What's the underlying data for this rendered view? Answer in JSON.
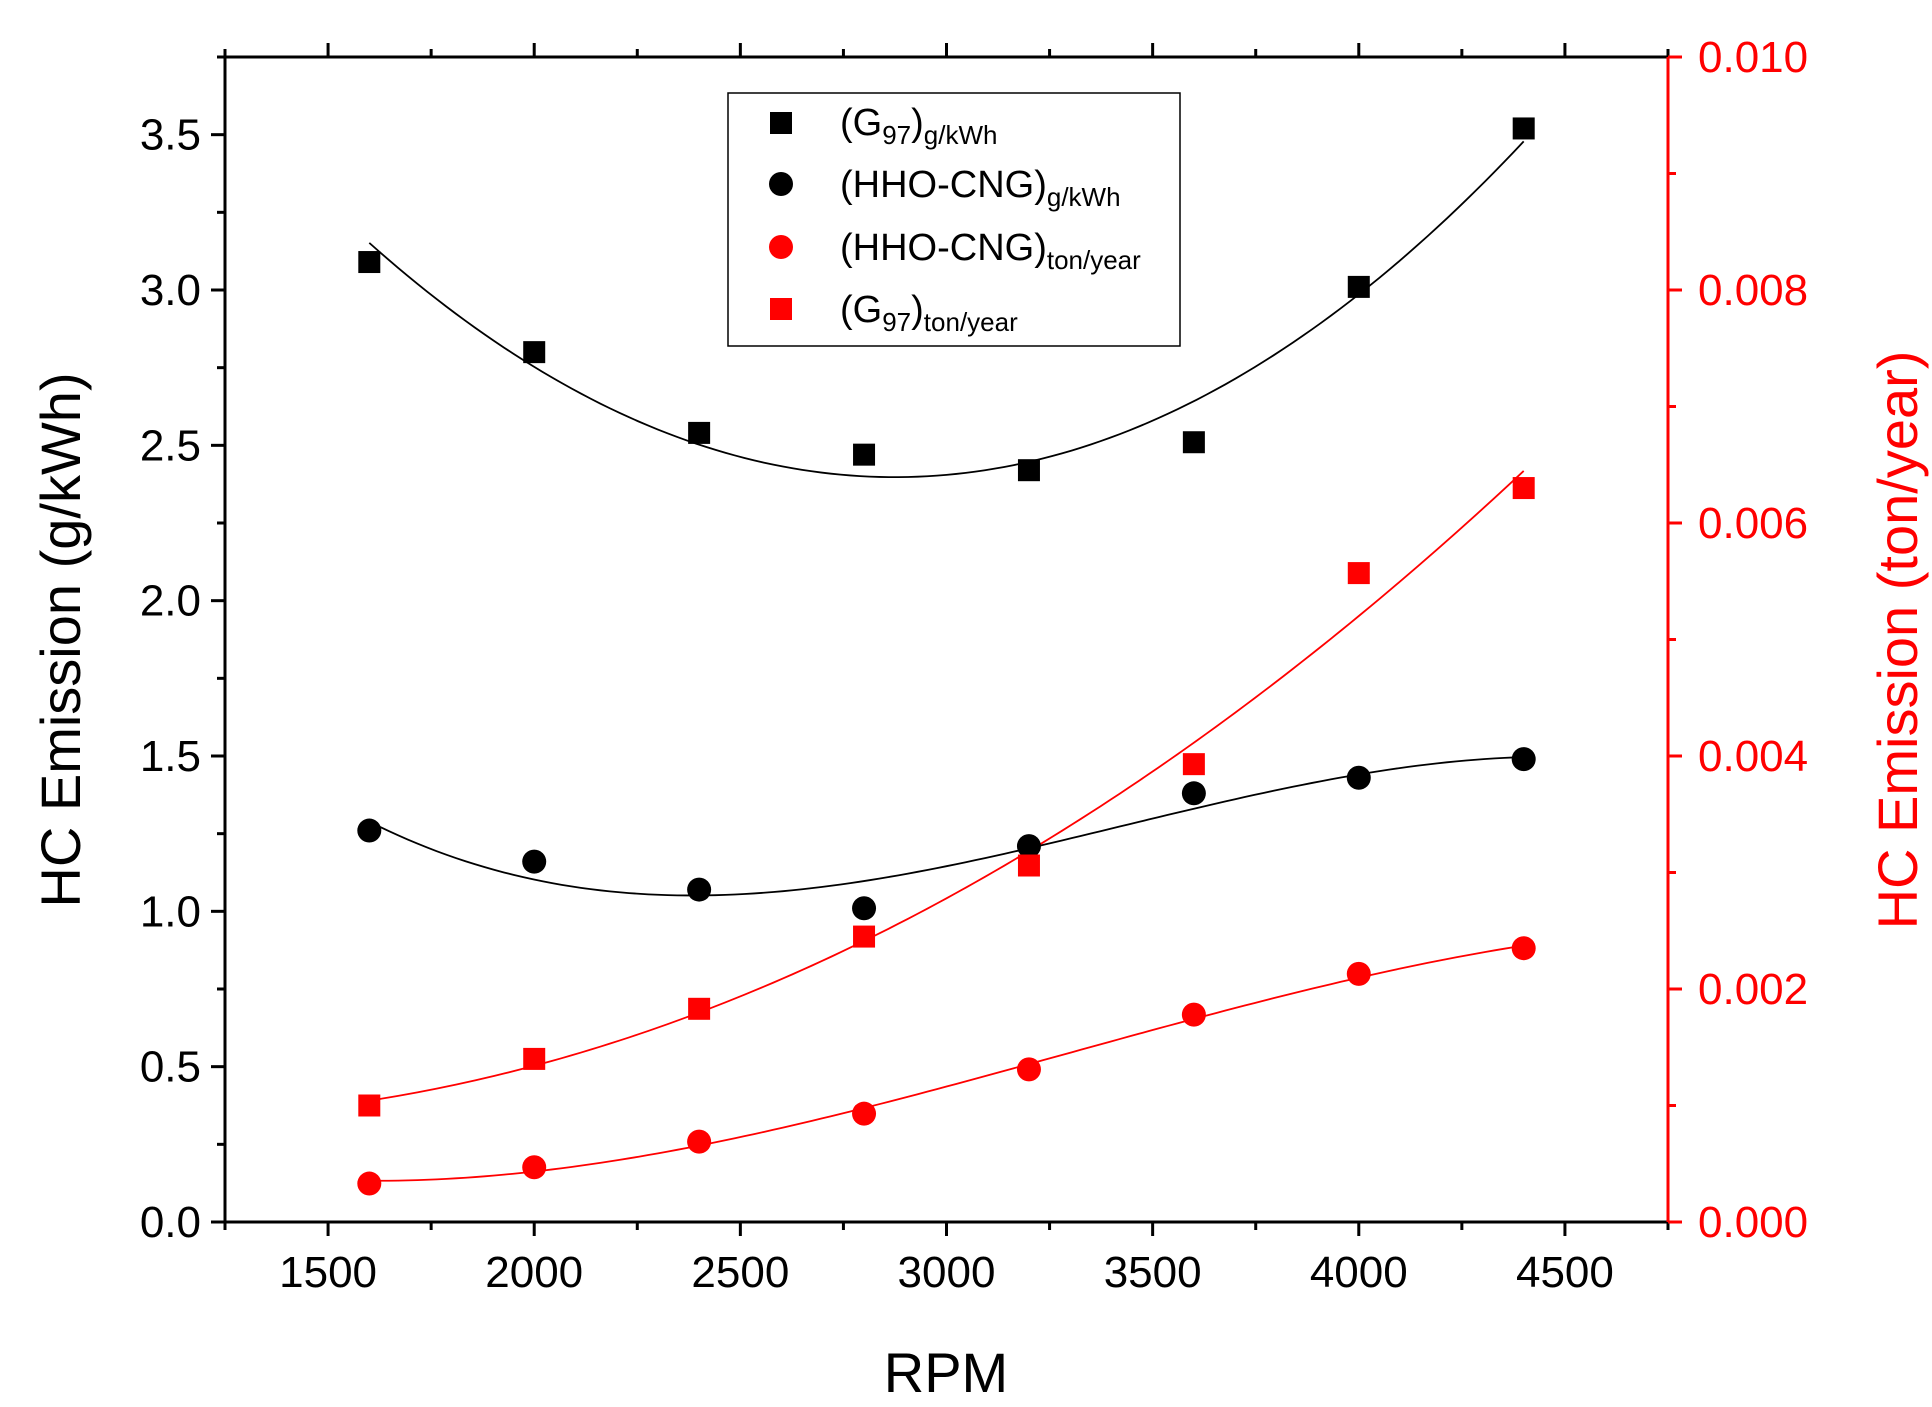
{
  "chart_data": {
    "type": "scatter",
    "xlabel": "RPM",
    "ylabel_left": "HC Emission (g/kWh)",
    "ylabel_right": "HC Emission (ton/year)",
    "xlim": [
      1250,
      4750
    ],
    "ylim_left": [
      0,
      3.75
    ],
    "ylim_right": [
      0,
      0.01
    ],
    "x_ticks": [
      1500,
      2000,
      2500,
      3000,
      3500,
      4000,
      4500
    ],
    "x_tick_labels": [
      "1500",
      "2000",
      "2500",
      "3000",
      "3500",
      "4000",
      "4500"
    ],
    "y_left_ticks": [
      0,
      0.5,
      1.0,
      1.5,
      2.0,
      2.5,
      3.0,
      3.5
    ],
    "y_left_tick_labels": [
      "0.0",
      "0.5",
      "1.0",
      "1.5",
      "2.0",
      "2.5",
      "3.0",
      "3.5"
    ],
    "y_right_ticks": [
      0,
      0.002,
      0.004,
      0.006,
      0.008,
      0.01
    ],
    "y_right_tick_labels": [
      "0.000",
      "0.002",
      "0.004",
      "0.006",
      "0.008",
      "0.010"
    ],
    "x": [
      1600,
      2000,
      2400,
      2800,
      3200,
      3600,
      4000,
      4400
    ],
    "series": [
      {
        "name": "G97 g/kWh",
        "legend_main": "(G",
        "legend_sub1": "97",
        "legend_mid": ")",
        "legend_sub2": "g/kWh",
        "marker": "square",
        "color": "#000000",
        "axis": "left",
        "values": [
          3.09,
          2.8,
          2.54,
          2.47,
          2.42,
          2.51,
          3.01,
          3.52
        ]
      },
      {
        "name": "HHO-CNG g/kWh",
        "legend_main": "(HHO-CNG)",
        "legend_sub1": "g/kWh",
        "marker": "circle",
        "color": "#000000",
        "axis": "left",
        "values": [
          1.26,
          1.16,
          1.07,
          1.01,
          1.21,
          1.38,
          1.43,
          1.49
        ]
      },
      {
        "name": "HHO-CNG ton/year",
        "legend_main": "(HHO-CNG)",
        "legend_sub1": "ton/year",
        "marker": "circle",
        "color": "#ff0000",
        "axis": "right",
        "values": [
          0.00033,
          0.00047,
          0.00069,
          0.00093,
          0.00131,
          0.00178,
          0.00213,
          0.00235
        ]
      },
      {
        "name": "G97 ton/year",
        "legend_main": "(G",
        "legend_sub1": "97",
        "legend_mid": ")",
        "legend_sub2": "ton/year",
        "marker": "square",
        "color": "#ff0000",
        "axis": "right",
        "values": [
          0.001,
          0.0014,
          0.00183,
          0.00245,
          0.00306,
          0.00393,
          0.00557,
          0.0063
        ]
      }
    ],
    "legend_position": "top-center",
    "grid": false
  },
  "colors": {
    "axis_left": "#000000",
    "axis_right": "#ff0000"
  }
}
